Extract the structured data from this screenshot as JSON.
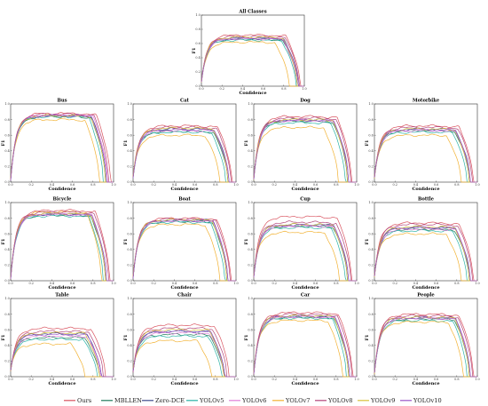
{
  "figure": {
    "legend": {
      "placement": "bottom",
      "entries": [
        {
          "name": "Ours",
          "color": "#d9535f"
        },
        {
          "name": "MBLLEN",
          "color": "#1f7a5a"
        },
        {
          "name": "Zero-DCE",
          "color": "#3d4b8c"
        },
        {
          "name": "YOLOv5",
          "color": "#2ab3a6"
        },
        {
          "name": "YOLOv6",
          "color": "#e07fd8"
        },
        {
          "name": "YOLOv7",
          "color": "#f2b233"
        },
        {
          "name": "YOLOv8",
          "color": "#b3457a"
        },
        {
          "name": "YOLOv9",
          "color": "#d8c23a"
        },
        {
          "name": "YOLOv10",
          "color": "#9a56c8"
        }
      ]
    }
  },
  "chart_data": [
    {
      "type": "line",
      "title": "All Classes",
      "xlabel": "Confidence",
      "ylabel": "F1",
      "xlim": [
        0,
        1
      ],
      "ylim": [
        0,
        1
      ],
      "grid": false,
      "x_ticks": [
        0.0,
        0.2,
        0.4,
        0.6,
        0.8,
        1.0
      ],
      "y_ticks": [
        0.0,
        0.2,
        0.4,
        0.6,
        0.8,
        1.0
      ],
      "series": [
        {
          "name": "Ours",
          "plateau": 0.72,
          "cutoff": 0.96
        },
        {
          "name": "MBLLEN",
          "plateau": 0.66,
          "cutoff": 0.93
        },
        {
          "name": "Zero-DCE",
          "plateau": 0.68,
          "cutoff": 0.94
        },
        {
          "name": "YOLOv5",
          "plateau": 0.65,
          "cutoff": 0.92
        },
        {
          "name": "YOLOv6",
          "plateau": 0.67,
          "cutoff": 0.93
        },
        {
          "name": "YOLOv7",
          "plateau": 0.62,
          "cutoff": 0.85
        },
        {
          "name": "YOLOv8",
          "plateau": 0.7,
          "cutoff": 0.95
        },
        {
          "name": "YOLOv9",
          "plateau": 0.69,
          "cutoff": 0.93
        },
        {
          "name": "YOLOv10",
          "plateau": 0.67,
          "cutoff": 0.94
        }
      ]
    },
    {
      "type": "line",
      "title": "Bus",
      "xlabel": "Confidence",
      "ylabel": "F1",
      "xlim": [
        0,
        1
      ],
      "ylim": [
        0,
        1
      ],
      "grid": false,
      "x_ticks": [
        0.0,
        0.2,
        0.4,
        0.6,
        0.8,
        1.0
      ],
      "y_ticks": [
        0.0,
        0.2,
        0.4,
        0.6,
        0.8,
        1.0
      ],
      "series": [
        {
          "name": "Ours",
          "plateau": 0.88,
          "cutoff": 0.97
        },
        {
          "name": "MBLLEN",
          "plateau": 0.84,
          "cutoff": 0.92
        },
        {
          "name": "Zero-DCE",
          "plateau": 0.85,
          "cutoff": 0.93
        },
        {
          "name": "YOLOv5",
          "plateau": 0.84,
          "cutoff": 0.9
        },
        {
          "name": "YOLOv6",
          "plateau": 0.86,
          "cutoff": 0.94
        },
        {
          "name": "YOLOv7",
          "plateau": 0.8,
          "cutoff": 0.86
        },
        {
          "name": "YOLOv8",
          "plateau": 0.87,
          "cutoff": 0.95
        },
        {
          "name": "YOLOv9",
          "plateau": 0.85,
          "cutoff": 0.92
        },
        {
          "name": "YOLOv10",
          "plateau": 0.85,
          "cutoff": 0.93
        }
      ]
    },
    {
      "type": "line",
      "title": "Cat",
      "xlabel": "Confidence",
      "ylabel": "F1",
      "xlim": [
        0,
        1
      ],
      "ylim": [
        0,
        1
      ],
      "grid": false,
      "x_ticks": [
        0.0,
        0.2,
        0.4,
        0.6,
        0.8,
        1.0
      ],
      "y_ticks": [
        0.0,
        0.2,
        0.4,
        0.6,
        0.8,
        1.0
      ],
      "series": [
        {
          "name": "Ours",
          "plateau": 0.72,
          "cutoff": 0.96
        },
        {
          "name": "MBLLEN",
          "plateau": 0.65,
          "cutoff": 0.92
        },
        {
          "name": "Zero-DCE",
          "plateau": 0.68,
          "cutoff": 0.93
        },
        {
          "name": "YOLOv5",
          "plateau": 0.64,
          "cutoff": 0.9
        },
        {
          "name": "YOLOv6",
          "plateau": 0.66,
          "cutoff": 0.93
        },
        {
          "name": "YOLOv7",
          "plateau": 0.6,
          "cutoff": 0.84
        },
        {
          "name": "YOLOv8",
          "plateau": 0.7,
          "cutoff": 0.95
        },
        {
          "name": "YOLOv9",
          "plateau": 0.69,
          "cutoff": 0.92
        },
        {
          "name": "YOLOv10",
          "plateau": 0.67,
          "cutoff": 0.93
        }
      ]
    },
    {
      "type": "line",
      "title": "Dog",
      "xlabel": "Confidence",
      "ylabel": "F1",
      "xlim": [
        0,
        1
      ],
      "ylim": [
        0,
        1
      ],
      "grid": false,
      "x_ticks": [
        0.0,
        0.2,
        0.4,
        0.6,
        0.8,
        1.0
      ],
      "y_ticks": [
        0.0,
        0.2,
        0.4,
        0.6,
        0.8,
        1.0
      ],
      "series": [
        {
          "name": "Ours",
          "plateau": 0.84,
          "cutoff": 0.95
        },
        {
          "name": "MBLLEN",
          "plateau": 0.78,
          "cutoff": 0.91
        },
        {
          "name": "Zero-DCE",
          "plateau": 0.8,
          "cutoff": 0.92
        },
        {
          "name": "YOLOv5",
          "plateau": 0.76,
          "cutoff": 0.89
        },
        {
          "name": "YOLOv6",
          "plateau": 0.79,
          "cutoff": 0.92
        },
        {
          "name": "YOLOv7",
          "plateau": 0.7,
          "cutoff": 0.82
        },
        {
          "name": "YOLOv8",
          "plateau": 0.82,
          "cutoff": 0.94
        },
        {
          "name": "YOLOv9",
          "plateau": 0.8,
          "cutoff": 0.91
        },
        {
          "name": "YOLOv10",
          "plateau": 0.79,
          "cutoff": 0.92
        }
      ]
    },
    {
      "type": "line",
      "title": "Motorbike",
      "xlabel": "Confidence",
      "ylabel": "F1",
      "xlim": [
        0,
        1
      ],
      "ylim": [
        0,
        1
      ],
      "grid": false,
      "x_ticks": [
        0.0,
        0.2,
        0.4,
        0.6,
        0.8,
        1.0
      ],
      "y_ticks": [
        0.0,
        0.2,
        0.4,
        0.6,
        0.8,
        1.0
      ],
      "series": [
        {
          "name": "Ours",
          "plateau": 0.72,
          "cutoff": 0.96
        },
        {
          "name": "MBLLEN",
          "plateau": 0.66,
          "cutoff": 0.92
        },
        {
          "name": "Zero-DCE",
          "plateau": 0.68,
          "cutoff": 0.93
        },
        {
          "name": "YOLOv5",
          "plateau": 0.64,
          "cutoff": 0.9
        },
        {
          "name": "YOLOv6",
          "plateau": 0.66,
          "cutoff": 0.93
        },
        {
          "name": "YOLOv7",
          "plateau": 0.6,
          "cutoff": 0.84
        },
        {
          "name": "YOLOv8",
          "plateau": 0.7,
          "cutoff": 0.95
        },
        {
          "name": "YOLOv9",
          "plateau": 0.68,
          "cutoff": 0.92
        },
        {
          "name": "YOLOv10",
          "plateau": 0.67,
          "cutoff": 0.93
        }
      ]
    },
    {
      "type": "line",
      "title": "Bicycle",
      "xlabel": "Confidence",
      "ylabel": "F1",
      "xlim": [
        0,
        1
      ],
      "ylim": [
        0,
        1
      ],
      "grid": false,
      "x_ticks": [
        0.0,
        0.2,
        0.4,
        0.6,
        0.8,
        1.0
      ],
      "y_ticks": [
        0.0,
        0.2,
        0.4,
        0.6,
        0.8,
        1.0
      ],
      "series": [
        {
          "name": "Ours",
          "plateau": 0.9,
          "cutoff": 0.96
        },
        {
          "name": "MBLLEN",
          "plateau": 0.84,
          "cutoff": 0.92
        },
        {
          "name": "Zero-DCE",
          "plateau": 0.86,
          "cutoff": 0.93
        },
        {
          "name": "YOLOv5",
          "plateau": 0.83,
          "cutoff": 0.9
        },
        {
          "name": "YOLOv6",
          "plateau": 0.85,
          "cutoff": 0.93
        },
        {
          "name": "YOLOv7",
          "plateau": 0.88,
          "cutoff": 0.88
        },
        {
          "name": "YOLOv8",
          "plateau": 0.88,
          "cutoff": 0.95
        },
        {
          "name": "YOLOv9",
          "plateau": 0.86,
          "cutoff": 0.92
        },
        {
          "name": "YOLOv10",
          "plateau": 0.85,
          "cutoff": 0.93
        }
      ]
    },
    {
      "type": "line",
      "title": "Boat",
      "xlabel": "Confidence",
      "ylabel": "F1",
      "xlim": [
        0,
        1
      ],
      "ylim": [
        0,
        1
      ],
      "grid": false,
      "x_ticks": [
        0.0,
        0.2,
        0.4,
        0.6,
        0.8,
        1.0
      ],
      "y_ticks": [
        0.0,
        0.2,
        0.4,
        0.6,
        0.8,
        1.0
      ],
      "series": [
        {
          "name": "Ours",
          "plateau": 0.8,
          "cutoff": 0.95
        },
        {
          "name": "MBLLEN",
          "plateau": 0.76,
          "cutoff": 0.91
        },
        {
          "name": "Zero-DCE",
          "plateau": 0.78,
          "cutoff": 0.92
        },
        {
          "name": "YOLOv5",
          "plateau": 0.75,
          "cutoff": 0.89
        },
        {
          "name": "YOLOv6",
          "plateau": 0.77,
          "cutoff": 0.92
        },
        {
          "name": "YOLOv7",
          "plateau": 0.72,
          "cutoff": 0.84
        },
        {
          "name": "YOLOv8",
          "plateau": 0.79,
          "cutoff": 0.94
        },
        {
          "name": "YOLOv9",
          "plateau": 0.78,
          "cutoff": 0.91
        },
        {
          "name": "YOLOv10",
          "plateau": 0.77,
          "cutoff": 0.92
        }
      ]
    },
    {
      "type": "line",
      "title": "Cup",
      "xlabel": "Confidence",
      "ylabel": "F1",
      "xlim": [
        0,
        1
      ],
      "ylim": [
        0,
        1
      ],
      "grid": false,
      "x_ticks": [
        0.0,
        0.2,
        0.4,
        0.6,
        0.8,
        1.0
      ],
      "y_ticks": [
        0.0,
        0.2,
        0.4,
        0.6,
        0.8,
        1.0
      ],
      "series": [
        {
          "name": "Ours",
          "plateau": 0.82,
          "cutoff": 0.95
        },
        {
          "name": "MBLLEN",
          "plateau": 0.7,
          "cutoff": 0.91
        },
        {
          "name": "Zero-DCE",
          "plateau": 0.72,
          "cutoff": 0.92
        },
        {
          "name": "YOLOv5",
          "plateau": 0.68,
          "cutoff": 0.89
        },
        {
          "name": "YOLOv6",
          "plateau": 0.7,
          "cutoff": 0.92
        },
        {
          "name": "YOLOv7",
          "plateau": 0.62,
          "cutoff": 0.83
        },
        {
          "name": "YOLOv8",
          "plateau": 0.75,
          "cutoff": 0.94
        },
        {
          "name": "YOLOv9",
          "plateau": 0.72,
          "cutoff": 0.91
        },
        {
          "name": "YOLOv10",
          "plateau": 0.71,
          "cutoff": 0.92
        }
      ]
    },
    {
      "type": "line",
      "title": "Bottle",
      "xlabel": "Confidence",
      "ylabel": "F1",
      "xlim": [
        0,
        1
      ],
      "ylim": [
        0,
        1
      ],
      "grid": false,
      "x_ticks": [
        0.0,
        0.2,
        0.4,
        0.6,
        0.8,
        1.0
      ],
      "y_ticks": [
        0.0,
        0.2,
        0.4,
        0.6,
        0.8,
        1.0
      ],
      "series": [
        {
          "name": "Ours",
          "plateau": 0.74,
          "cutoff": 0.96
        },
        {
          "name": "MBLLEN",
          "plateau": 0.66,
          "cutoff": 0.92
        },
        {
          "name": "Zero-DCE",
          "plateau": 0.68,
          "cutoff": 0.93
        },
        {
          "name": "YOLOv5",
          "plateau": 0.64,
          "cutoff": 0.9
        },
        {
          "name": "YOLOv6",
          "plateau": 0.66,
          "cutoff": 0.93
        },
        {
          "name": "YOLOv7",
          "plateau": 0.6,
          "cutoff": 0.84
        },
        {
          "name": "YOLOv8",
          "plateau": 0.72,
          "cutoff": 0.95
        },
        {
          "name": "YOLOv9",
          "plateau": 0.69,
          "cutoff": 0.92
        },
        {
          "name": "YOLOv10",
          "plateau": 0.68,
          "cutoff": 0.93
        }
      ]
    },
    {
      "type": "line",
      "title": "Table",
      "xlabel": "Confidence",
      "ylabel": "F1",
      "xlim": [
        0,
        1
      ],
      "ylim": [
        0,
        1
      ],
      "grid": false,
      "x_ticks": [
        0.0,
        0.2,
        0.4,
        0.6,
        0.8,
        1.0
      ],
      "y_ticks": [
        0.0,
        0.2,
        0.4,
        0.6,
        0.8,
        1.0
      ],
      "series": [
        {
          "name": "Ours",
          "plateau": 0.62,
          "cutoff": 0.92
        },
        {
          "name": "MBLLEN",
          "plateau": 0.5,
          "cutoff": 0.86
        },
        {
          "name": "Zero-DCE",
          "plateau": 0.55,
          "cutoff": 0.88
        },
        {
          "name": "YOLOv5",
          "plateau": 0.48,
          "cutoff": 0.84
        },
        {
          "name": "YOLOv6",
          "plateau": 0.52,
          "cutoff": 0.87
        },
        {
          "name": "YOLOv7",
          "plateau": 0.42,
          "cutoff": 0.72
        },
        {
          "name": "YOLOv8",
          "plateau": 0.58,
          "cutoff": 0.9
        },
        {
          "name": "YOLOv9",
          "plateau": 0.56,
          "cutoff": 0.86
        },
        {
          "name": "YOLOv10",
          "plateau": 0.54,
          "cutoff": 0.88
        }
      ]
    },
    {
      "type": "line",
      "title": "Chair",
      "xlabel": "Confidence",
      "ylabel": "F1",
      "xlim": [
        0,
        1
      ],
      "ylim": [
        0,
        1
      ],
      "grid": false,
      "x_ticks": [
        0.0,
        0.2,
        0.4,
        0.6,
        0.8,
        1.0
      ],
      "y_ticks": [
        0.0,
        0.2,
        0.4,
        0.6,
        0.8,
        1.0
      ],
      "series": [
        {
          "name": "Ours",
          "plateau": 0.66,
          "cutoff": 0.93
        },
        {
          "name": "MBLLEN",
          "plateau": 0.54,
          "cutoff": 0.88
        },
        {
          "name": "Zero-DCE",
          "plateau": 0.58,
          "cutoff": 0.89
        },
        {
          "name": "YOLOv5",
          "plateau": 0.52,
          "cutoff": 0.86
        },
        {
          "name": "YOLOv6",
          "plateau": 0.56,
          "cutoff": 0.88
        },
        {
          "name": "YOLOv7",
          "plateau": 0.46,
          "cutoff": 0.76
        },
        {
          "name": "YOLOv8",
          "plateau": 0.62,
          "cutoff": 0.91
        },
        {
          "name": "YOLOv9",
          "plateau": 0.6,
          "cutoff": 0.88
        },
        {
          "name": "YOLOv10",
          "plateau": 0.58,
          "cutoff": 0.89
        }
      ]
    },
    {
      "type": "line",
      "title": "Car",
      "xlabel": "Confidence",
      "ylabel": "F1",
      "xlim": [
        0,
        1
      ],
      "ylim": [
        0,
        1
      ],
      "grid": false,
      "x_ticks": [
        0.0,
        0.2,
        0.4,
        0.6,
        0.8,
        1.0
      ],
      "y_ticks": [
        0.0,
        0.2,
        0.4,
        0.6,
        0.8,
        1.0
      ],
      "series": [
        {
          "name": "Ours",
          "plateau": 0.82,
          "cutoff": 0.96
        },
        {
          "name": "MBLLEN",
          "plateau": 0.76,
          "cutoff": 0.92
        },
        {
          "name": "Zero-DCE",
          "plateau": 0.78,
          "cutoff": 0.93
        },
        {
          "name": "YOLOv5",
          "plateau": 0.75,
          "cutoff": 0.9
        },
        {
          "name": "YOLOv6",
          "plateau": 0.77,
          "cutoff": 0.93
        },
        {
          "name": "YOLOv7",
          "plateau": 0.72,
          "cutoff": 0.86
        },
        {
          "name": "YOLOv8",
          "plateau": 0.8,
          "cutoff": 0.95
        },
        {
          "name": "YOLOv9",
          "plateau": 0.78,
          "cutoff": 0.92
        },
        {
          "name": "YOLOv10",
          "plateau": 0.77,
          "cutoff": 0.93
        }
      ]
    },
    {
      "type": "line",
      "title": "People",
      "xlabel": "Confidence",
      "ylabel": "F1",
      "xlim": [
        0,
        1
      ],
      "ylim": [
        0,
        1
      ],
      "grid": false,
      "x_ticks": [
        0.0,
        0.2,
        0.4,
        0.6,
        0.8,
        1.0
      ],
      "y_ticks": [
        0.0,
        0.2,
        0.4,
        0.6,
        0.8,
        1.0
      ],
      "series": [
        {
          "name": "Ours",
          "plateau": 0.8,
          "cutoff": 0.96
        },
        {
          "name": "MBLLEN",
          "plateau": 0.74,
          "cutoff": 0.92
        },
        {
          "name": "Zero-DCE",
          "plateau": 0.76,
          "cutoff": 0.93
        },
        {
          "name": "YOLOv5",
          "plateau": 0.72,
          "cutoff": 0.9
        },
        {
          "name": "YOLOv6",
          "plateau": 0.75,
          "cutoff": 0.93
        },
        {
          "name": "YOLOv7",
          "plateau": 0.7,
          "cutoff": 0.86
        },
        {
          "name": "YOLOv8",
          "plateau": 0.78,
          "cutoff": 0.95
        },
        {
          "name": "YOLOv9",
          "plateau": 0.76,
          "cutoff": 0.92
        },
        {
          "name": "YOLOv10",
          "plateau": 0.75,
          "cutoff": 0.93
        }
      ]
    }
  ]
}
